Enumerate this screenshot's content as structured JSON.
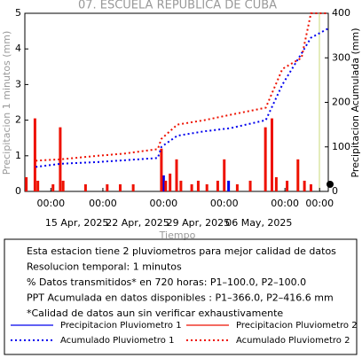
{
  "chart_data": {
    "type": "bar-line",
    "title": "07. ESCUELA REPUBLICA DE CUBA",
    "ylabel": "Precipitacion 1 minutos (mm)",
    "y2label": "Precipitacion Acumulada (mm)",
    "xlabel": "Tiempo",
    "xlim": [
      "2025-04-09T00:00",
      "2025-05-14T00:00"
    ],
    "xticks": [
      {
        "value": "2025-04-12T00:00",
        "label": "00:00"
      },
      {
        "value": "2025-04-18T00:00",
        "label": "00:00"
      },
      {
        "value": "2025-04-25T00:00",
        "label": "00:00"
      },
      {
        "value": "2025-05-02T00:00",
        "label": "00:00"
      },
      {
        "value": "2025-05-09T00:00",
        "label": "00:00"
      },
      {
        "value": "2025-05-13T00:00",
        "label": "00:00"
      }
    ],
    "xdate_labels": [
      {
        "value": "2025-04-15T00:00",
        "label": "15 Apr, 2025"
      },
      {
        "value": "2025-04-22T00:00",
        "label": "22 Apr, 2025"
      },
      {
        "value": "2025-04-29T00:00",
        "label": "29 Apr, 2025"
      },
      {
        "value": "2025-05-06T00:00",
        "label": "06 May, 2025"
      }
    ],
    "ylim": [
      0,
      5
    ],
    "yticks": [
      0,
      1,
      2,
      3,
      4,
      5
    ],
    "y2lim": [
      0,
      400
    ],
    "y2ticks": [
      0,
      100,
      200,
      300,
      400
    ],
    "series": [
      {
        "name": "Precipitacion Pluviometro 1",
        "color": "#0000ee",
        "kind": "bar",
        "x": [
          "2025-04-25T00:00",
          "2025-05-02T12:00"
        ],
        "values": [
          0.45,
          0.3
        ]
      },
      {
        "name": "Precipitacion Pluviometro 2",
        "color": "#ee1100",
        "kind": "bar",
        "x": [
          "2025-04-09T04:00",
          "2025-04-10T04:00",
          "2025-04-10T12:00",
          "2025-04-12T06:00",
          "2025-04-13T02:00",
          "2025-04-13T10:00",
          "2025-04-16T00:00",
          "2025-04-18T12:00",
          "2025-04-20T00:00",
          "2025-04-21T12:00",
          "2025-04-24T18:00",
          "2025-04-25T06:00",
          "2025-04-25T18:00",
          "2025-04-26T12:00",
          "2025-04-27T00:00",
          "2025-04-28T06:00",
          "2025-04-29T00:00",
          "2025-04-30T00:00",
          "2025-05-01T06:00",
          "2025-05-02T00:00",
          "2025-05-03T12:00",
          "2025-05-05T00:00",
          "2025-05-06T18:00",
          "2025-05-07T12:00",
          "2025-05-08T00:00",
          "2025-05-09T06:00",
          "2025-05-10T12:00",
          "2025-05-11T06:00",
          "2025-05-12T00:00"
        ],
        "values": [
          0.4,
          2.05,
          0.3,
          0.2,
          1.8,
          0.3,
          0.2,
          0.2,
          0.2,
          0.2,
          1.2,
          0.3,
          0.5,
          0.9,
          0.3,
          0.2,
          0.3,
          0.2,
          0.3,
          0.9,
          0.2,
          0.3,
          1.8,
          2.05,
          0.4,
          0.3,
          0.9,
          0.3,
          0.2
        ]
      },
      {
        "name": "Acumulado Pluviometro 1",
        "color": "#0000ee",
        "kind": "line",
        "axis": "y2",
        "x": [
          "2025-04-10T06:00",
          "2025-04-13T02:00",
          "2025-04-17T10:00",
          "2025-04-20T12:00",
          "2025-04-24T08:00",
          "2025-04-24T18:00",
          "2025-04-26T14:00",
          "2025-04-29T17:00",
          "2025-05-02T17:00",
          "2025-05-06T19:00",
          "2025-05-08T17:00",
          "2025-05-10T22:00",
          "2025-05-12T00:00",
          "2025-05-14T00:00"
        ],
        "values": [
          55,
          62,
          66,
          70,
          75,
          100,
          125,
          135,
          142,
          160,
          240,
          310,
          345,
          366
        ]
      },
      {
        "name": "Acumulado Pluviometro 2",
        "color": "#ee1100",
        "kind": "line",
        "axis": "y2",
        "x": [
          "2025-04-10T06:00",
          "2025-04-13T02:00",
          "2025-04-17T10:00",
          "2025-04-20T12:00",
          "2025-04-24T08:00",
          "2025-04-24T18:00",
          "2025-04-26T14:00",
          "2025-04-29T17:00",
          "2025-05-02T17:00",
          "2025-05-06T19:00",
          "2025-05-08T17:00",
          "2025-05-10T22:00",
          "2025-05-12T00:00",
          "2025-05-14T00:00"
        ],
        "values": [
          69,
          72,
          80,
          85,
          95,
          118,
          150,
          160,
          172,
          188,
          275,
          300,
          400,
          400
        ]
      }
    ],
    "notes": [
      "Esta estacion tiene 2 pluviometros para mejor calidad de datos",
      "Resolucion temporal: 1 minutos",
      "% Datos transmitidos* en 720 horas: P1–100.0, P2–100.0",
      "PPT Acumulada en datos disponibles : P1–366.0, P2–416.6 mm",
      "*Calidad de datos aun sin verificar exhaustivamente"
    ]
  }
}
